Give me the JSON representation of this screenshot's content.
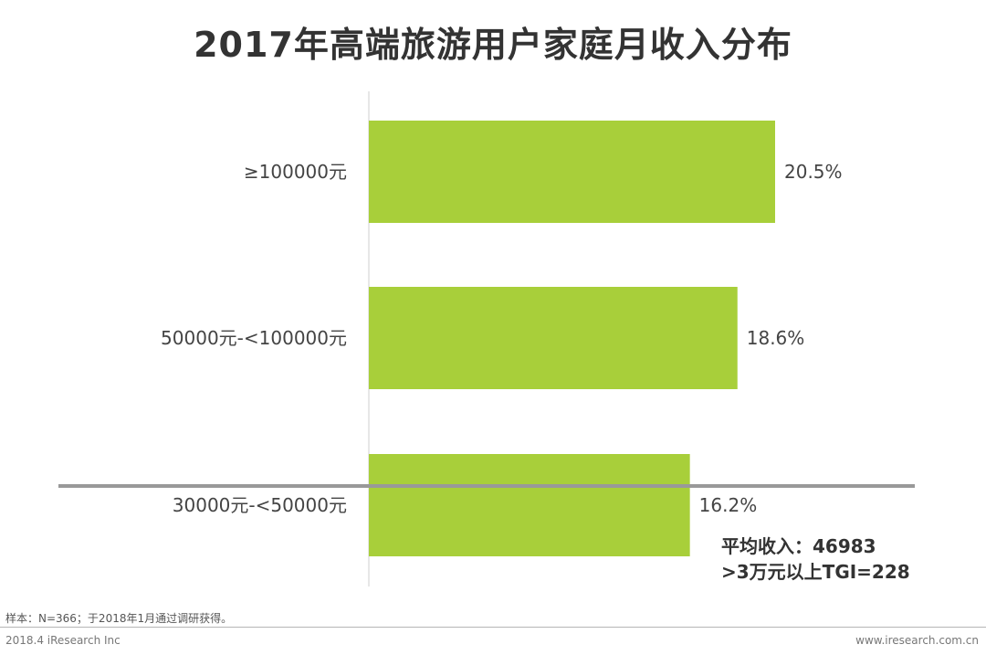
{
  "chart_data": {
    "type": "bar",
    "orientation": "horizontal",
    "title": "2017年高端旅游用户家庭月收入分布",
    "categories": [
      "≥100000元",
      "50000元-<100000元",
      "30000元-<50000元"
    ],
    "values": [
      20.5,
      18.6,
      16.2
    ],
    "value_labels": [
      "20.5%",
      "18.6%",
      "16.2%"
    ],
    "unit": "%",
    "xlim": [
      0,
      25
    ],
    "grid": false,
    "legend": "none",
    "bar_color": "#a8cf3a",
    "reference_line": {
      "position": "between 30000元-<50000元 bar and label",
      "color": "#999999"
    },
    "annotations": [
      "平均收入：46983",
      ">3万元以上TGI=228"
    ]
  },
  "note": {
    "line1": "平均收入：46983",
    "line2": ">3万元以上TGI=228"
  },
  "footer": {
    "sample": "样本：N=366；于2018年1月通过调研获得。",
    "copyright": "2018.4 iResearch Inc",
    "website": "www.iresearch.com.cn"
  }
}
